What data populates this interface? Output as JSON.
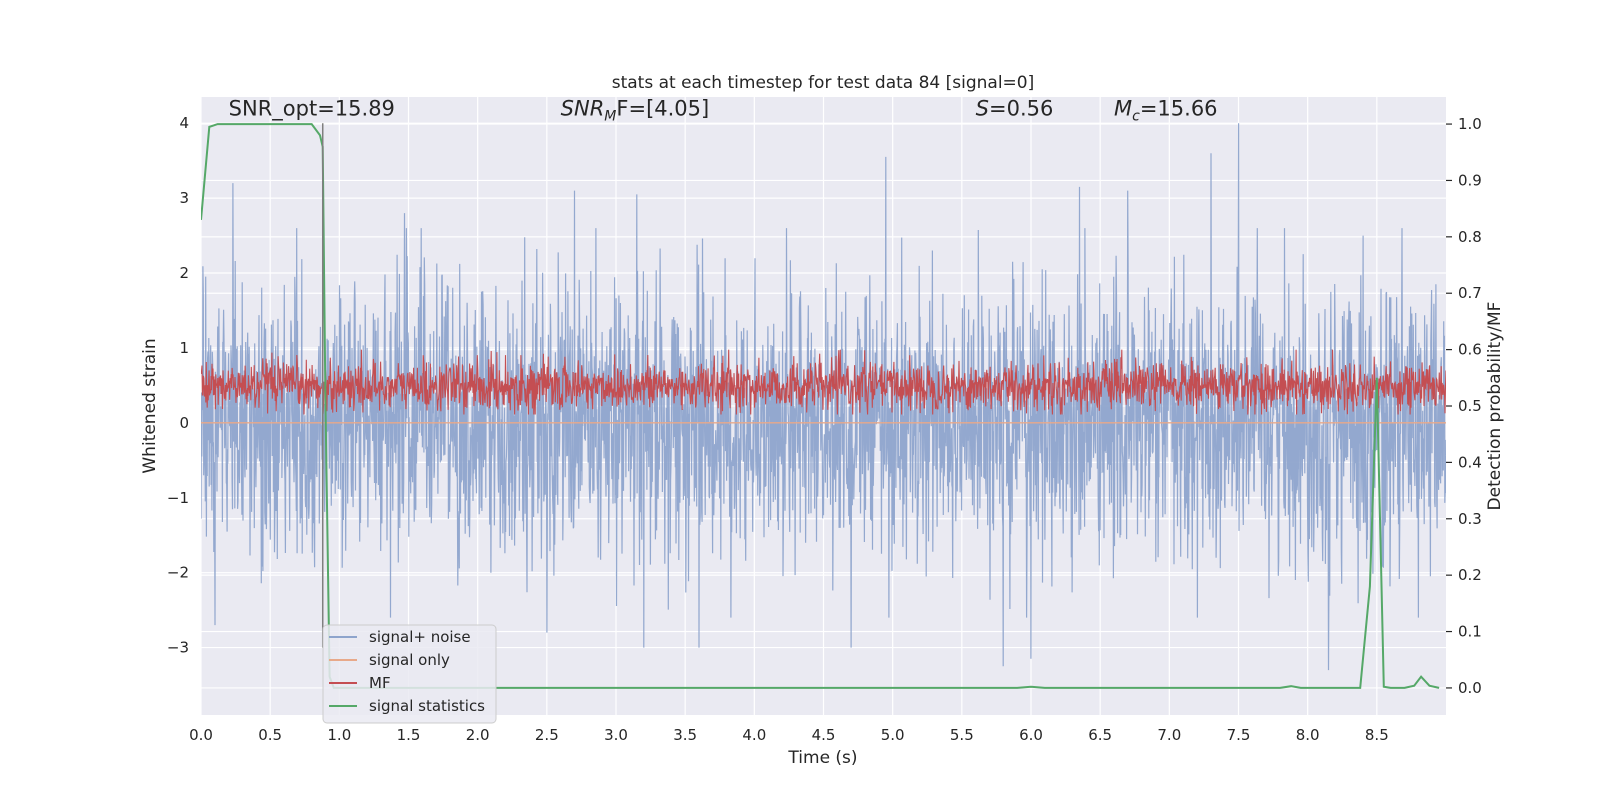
{
  "chart_data": {
    "type": "line",
    "title": "stats at each timestep for test data 84 [signal=0]",
    "xlabel": "Time (s)",
    "ylabel_left": "Whitened strain",
    "ylabel_right": "Detection probability/MF",
    "xlim": [
      0.0,
      9.0
    ],
    "ylim_left": [
      -3.9,
      4.35
    ],
    "ylim_right": [
      -0.048,
      1.048
    ],
    "xticks": [
      0.0,
      0.5,
      1.0,
      1.5,
      2.0,
      2.5,
      3.0,
      3.5,
      4.0,
      4.5,
      5.0,
      5.5,
      6.0,
      6.5,
      7.0,
      7.5,
      8.0,
      8.5
    ],
    "xtick_labels": [
      "0.0",
      "0.5",
      "1.0",
      "1.5",
      "2.0",
      "2.5",
      "3.0",
      "3.5",
      "4.0",
      "4.5",
      "5.0",
      "5.5",
      "6.0",
      "6.5",
      "7.0",
      "7.5",
      "8.0",
      "8.5"
    ],
    "yticks_left": [
      -3,
      -2,
      -1,
      0,
      1,
      2,
      3,
      4
    ],
    "ytick_labels_left": [
      "−3",
      "−2",
      "−1",
      "0",
      "1",
      "2",
      "3",
      "4"
    ],
    "yticks_right": [
      0.0,
      0.1,
      0.2,
      0.3,
      0.4,
      0.5,
      0.6,
      0.7,
      0.8,
      0.9,
      1.0
    ],
    "ytick_labels_right": [
      "0.0",
      "0.1",
      "0.2",
      "0.3",
      "0.4",
      "0.5",
      "0.6",
      "0.7",
      "0.8",
      "0.9",
      "1.0"
    ],
    "grid": true,
    "annotations": [
      {
        "id": "snr-opt",
        "text": "SNR_opt=15.89",
        "x": 0.2,
        "y": 4.1,
        "italic": false
      },
      {
        "id": "snr-mf",
        "base": "SNR",
        "sub": "M",
        "rest": "F=[4.05]",
        "x": 2.6,
        "y": 4.1,
        "italic": true
      },
      {
        "id": "s-val",
        "base": "S",
        "sub": "",
        "rest": "=0.56",
        "x": 5.6,
        "y": 4.1,
        "italic": true
      },
      {
        "id": "mc-val",
        "base": "M",
        "sub": "c",
        "rest": "=15.66",
        "x": 6.6,
        "y": 4.1,
        "italic": true
      }
    ],
    "marker_line": {
      "x": 0.88,
      "y_top": 4.0,
      "y_bottom": -3.0,
      "color": "#7f7f7f"
    },
    "legend": {
      "placement": "lower-left",
      "entries": [
        {
          "label": "signal+ noise",
          "color": "#8ea4cc"
        },
        {
          "label": "signal only",
          "color": "#e8a98a"
        },
        {
          "label": "MF",
          "color": "#c44e52"
        },
        {
          "label": "signal statistics",
          "color": "#55a868"
        }
      ]
    },
    "series": [
      {
        "name": "signal+ noise",
        "axis": "left",
        "color": "#8ea4cc",
        "style": "dense noise trace",
        "x_range": [
          0.0,
          9.0
        ],
        "typical_range": [
          -1.9,
          1.9
        ],
        "peaks": [
          {
            "x": 0.23,
            "y": 3.2
          },
          {
            "x": 1.47,
            "y": 2.8
          },
          {
            "x": 2.7,
            "y": 3.1
          },
          {
            "x": 3.15,
            "y": 3.05
          },
          {
            "x": 4.95,
            "y": 3.55
          },
          {
            "x": 6.35,
            "y": 3.15
          },
          {
            "x": 6.7,
            "y": 3.1
          },
          {
            "x": 7.3,
            "y": 3.6
          },
          {
            "x": 7.5,
            "y": 4.0
          },
          {
            "x": 8.4,
            "y": 2.5
          }
        ],
        "troughs": [
          {
            "x": 0.1,
            "y": -2.7
          },
          {
            "x": 2.5,
            "y": -2.8
          },
          {
            "x": 3.2,
            "y": -3.0
          },
          {
            "x": 3.6,
            "y": -3.0
          },
          {
            "x": 4.7,
            "y": -3.0
          },
          {
            "x": 5.8,
            "y": -3.25
          },
          {
            "x": 6.0,
            "y": -3.15
          },
          {
            "x": 8.15,
            "y": -3.3
          }
        ]
      },
      {
        "name": "signal only",
        "axis": "left",
        "color": "#e8a98a",
        "x": [
          0.0,
          9.0
        ],
        "y": [
          0.0,
          0.0
        ]
      },
      {
        "name": "MF",
        "axis": "right",
        "color": "#c44e52",
        "style": "dense trace",
        "x_range": [
          0.0,
          9.0
        ],
        "typical_range": [
          0.5,
          0.58
        ],
        "max": 0.6,
        "min": 0.485
      },
      {
        "name": "signal statistics",
        "axis": "right",
        "color": "#55a868",
        "x": [
          0.0,
          0.06,
          0.12,
          0.2,
          0.4,
          0.6,
          0.8,
          0.86,
          0.88,
          0.9,
          0.93,
          0.96,
          1.0,
          2.0,
          3.0,
          4.0,
          5.0,
          5.9,
          6.0,
          6.1,
          7.0,
          7.8,
          7.88,
          7.95,
          8.1,
          8.38,
          8.45,
          8.5,
          8.55,
          8.6,
          8.7,
          8.77,
          8.82,
          8.88,
          8.95
        ],
        "y": [
          0.83,
          0.995,
          1.0,
          1.0,
          1.0,
          1.0,
          1.0,
          0.98,
          0.96,
          0.5,
          0.02,
          0.0,
          0.0,
          0.0,
          0.0,
          0.0,
          0.0,
          0.0,
          0.002,
          0.0,
          0.0,
          0.0,
          0.003,
          0.0,
          0.0,
          0.0,
          0.18,
          0.55,
          0.002,
          0.0,
          0.0,
          0.004,
          0.02,
          0.004,
          0.0
        ]
      }
    ]
  }
}
